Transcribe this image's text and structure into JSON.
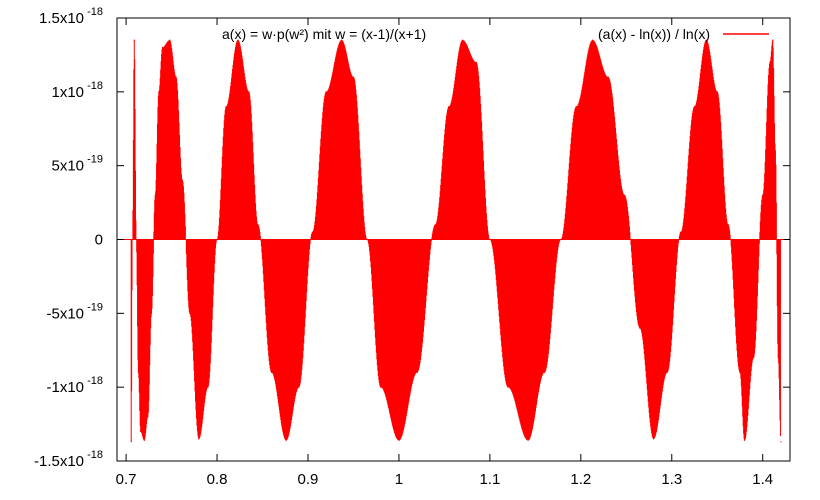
{
  "chart_data": {
    "type": "area",
    "title": "",
    "annotation": "a(x) = w·p(w²)  mit   w = (x-1)/(x+1)",
    "xlabel": "",
    "ylabel": "",
    "xlim": [
      0.69,
      1.43
    ],
    "ylim": [
      -1.5e-18,
      1.5e-18
    ],
    "grid": false,
    "legend": {
      "position": "top-right",
      "entries": [
        "(a(x) - ln(x)) / ln(x)"
      ]
    },
    "x_ticks": [
      {
        "value": 0.7,
        "label": "0.7"
      },
      {
        "value": 0.8,
        "label": "0.8"
      },
      {
        "value": 0.9,
        "label": "0.9"
      },
      {
        "value": 1.0,
        "label": "1"
      },
      {
        "value": 1.1,
        "label": "1.1"
      },
      {
        "value": 1.2,
        "label": "1.2"
      },
      {
        "value": 1.3,
        "label": "1.3"
      },
      {
        "value": 1.4,
        "label": "1.4"
      }
    ],
    "y_ticks": [
      {
        "value": 1.5e-18,
        "mant": "1.5x10",
        "exp": "-18"
      },
      {
        "value": 1e-18,
        "mant": "1x10",
        "exp": "-18"
      },
      {
        "value": 5e-19,
        "mant": "5x10",
        "exp": "-19"
      },
      {
        "value": 0,
        "mant": "0",
        "exp": ""
      },
      {
        "value": -5e-19,
        "mant": "-5x10",
        "exp": "-19"
      },
      {
        "value": -1e-18,
        "mant": "-1x10",
        "exp": "-18"
      },
      {
        "value": -1.5e-18,
        "mant": "-1.5x10",
        "exp": "-18"
      }
    ],
    "series": [
      {
        "name": "(a(x) - ln(x)) / ln(x)",
        "color": "#ff0000",
        "fill": "impulses-to-zero",
        "x": [
          0.7056,
          0.707,
          0.709,
          0.7112,
          0.7135,
          0.716,
          0.72,
          0.724,
          0.728,
          0.732,
          0.736,
          0.74,
          0.748,
          0.755,
          0.762,
          0.77,
          0.78,
          0.79,
          0.8,
          0.81,
          0.823,
          0.835,
          0.845,
          0.86,
          0.876,
          0.89,
          0.905,
          0.92,
          0.937,
          0.95,
          0.965,
          0.98,
          1.0,
          1.02,
          1.04,
          1.055,
          1.07,
          1.085,
          1.1,
          1.12,
          1.142,
          1.16,
          1.178,
          1.195,
          1.213,
          1.23,
          1.248,
          1.265,
          1.28,
          1.295,
          1.31,
          1.325,
          1.338,
          1.35,
          1.362,
          1.375,
          1.38,
          1.39,
          1.4,
          1.408,
          1.411,
          1.414,
          1.417,
          1.42
        ],
        "values": [
          -1.37e-18,
          0,
          1.35e-18,
          0,
          -9e-19,
          -1.3e-18,
          -1.36e-18,
          -1.2e-18,
          -5e-19,
          3e-19,
          1e-18,
          1.3e-18,
          1.35e-18,
          1.1e-18,
          4e-19,
          -5e-19,
          -1.35e-18,
          -1e-18,
          0,
          9e-19,
          1.35e-18,
          1e-18,
          1e-19,
          -9e-19,
          -1.36e-18,
          -1e-18,
          5e-20,
          1e-18,
          1.35e-18,
          1.1e-18,
          0,
          -1e-18,
          -1.36e-18,
          -9e-19,
          1e-19,
          9e-19,
          1.35e-18,
          1.2e-18,
          0,
          -1e-18,
          -1.36e-18,
          -9e-19,
          0,
          9e-19,
          1.35e-18,
          1.1e-18,
          3e-19,
          -6e-19,
          -1.35e-18,
          -9e-19,
          5e-20,
          9e-19,
          1.35e-18,
          1e-18,
          1e-19,
          -9e-19,
          -1.36e-18,
          -8e-19,
          3e-19,
          1.2e-18,
          1.35e-18,
          6e-19,
          -8e-19,
          -1.37e-18
        ]
      }
    ]
  }
}
